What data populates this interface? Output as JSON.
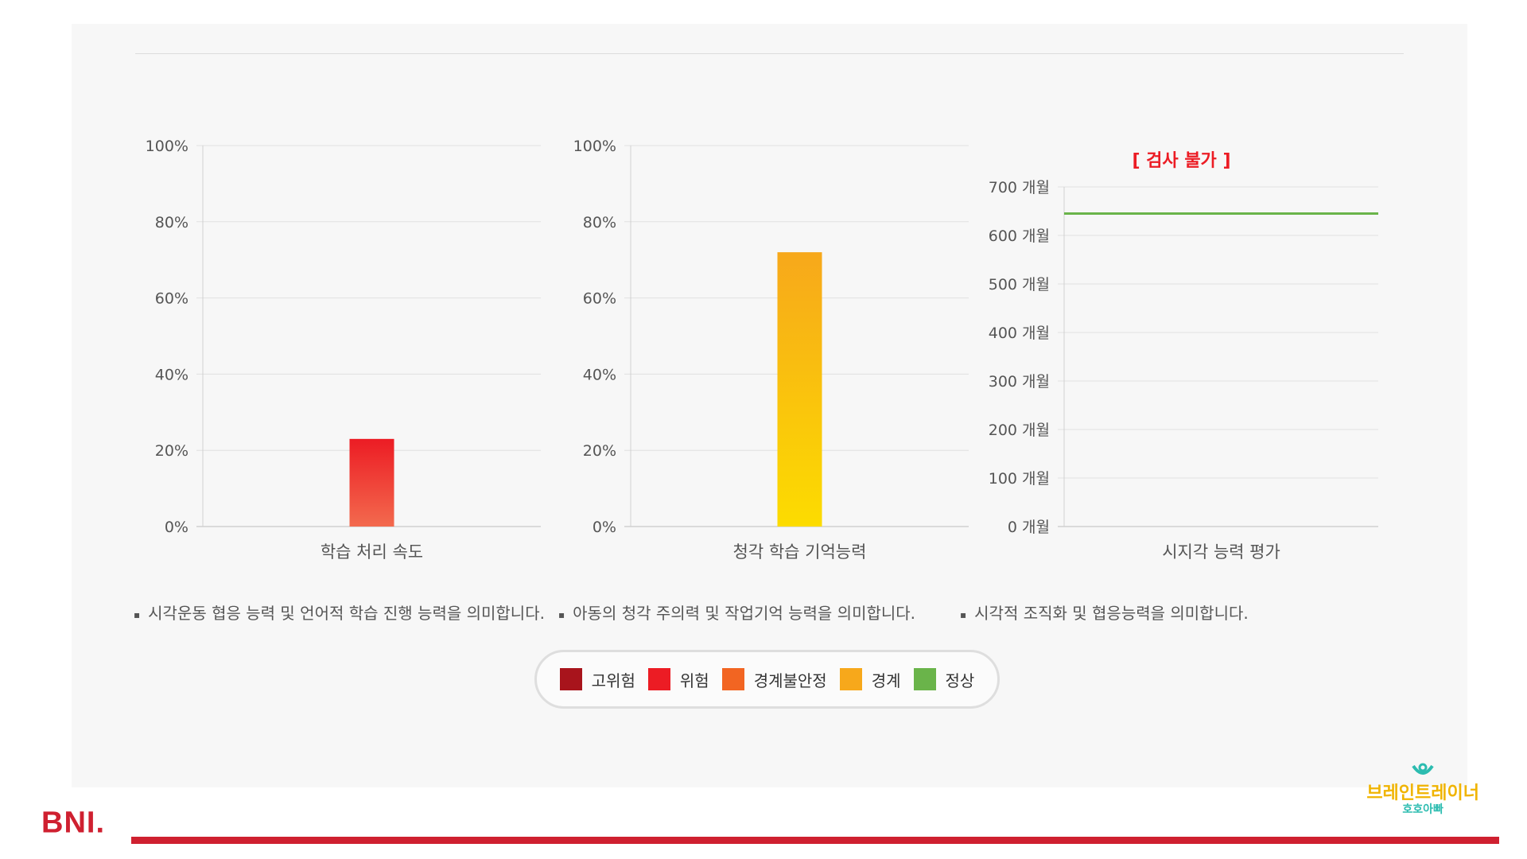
{
  "chart_data": [
    {
      "type": "bar",
      "categories": [
        "학습 처리 속도"
      ],
      "values": [
        23
      ],
      "ylim": [
        0,
        100
      ],
      "yticks": [
        "100%",
        "80%",
        "60%",
        "40%",
        "20%",
        "0%"
      ],
      "bar_gradient": [
        "#ec1c24",
        "#f36a4e"
      ],
      "description": "시각운동 협응 능력 및 언어적 학습 진행 능력을 의미합니다."
    },
    {
      "type": "bar",
      "categories": [
        "청각 학습 기억능력"
      ],
      "values": [
        72
      ],
      "ylim": [
        0,
        100
      ],
      "yticks": [
        "100%",
        "80%",
        "60%",
        "40%",
        "20%",
        "0%"
      ],
      "bar_gradient": [
        "#f7a81b",
        "#fcdc00"
      ],
      "description": "아동의 청각 주의력 및 작업기억 능력을 의미합니다."
    },
    {
      "type": "line",
      "categories": [
        "시지각 능력 평가"
      ],
      "values": [
        645
      ],
      "ylim": [
        0,
        700
      ],
      "yticks": [
        "700 개월",
        "600 개월",
        "500 개월",
        "400 개월",
        "300 개월",
        "200 개월",
        "100 개월",
        "0 개월"
      ],
      "annotation": "[ 검사 불가 ]",
      "line_color": "#6ab44a",
      "annotation_color": "#ec1c24",
      "description": "시각적 조직화 및 협응능력을 의미합니다."
    }
  ],
  "legend": [
    {
      "label": "고위험",
      "color": "#a8141c"
    },
    {
      "label": "위험",
      "color": "#ec1c24"
    },
    {
      "label": "경계불안정",
      "color": "#f26522"
    },
    {
      "label": "경계",
      "color": "#f7a81b"
    },
    {
      "label": "정상",
      "color": "#6ab44a"
    }
  ],
  "brand": {
    "name": "브레인트레이너",
    "sub": "호호아빠"
  },
  "footer": {
    "logo": "BNI."
  }
}
